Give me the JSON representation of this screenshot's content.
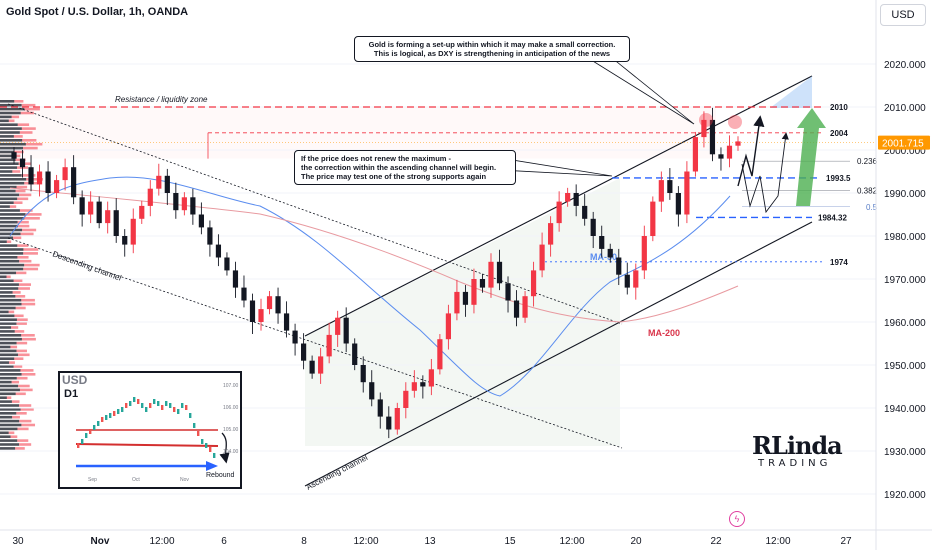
{
  "header": {
    "title": "Gold Spot / U.S. Dollar, 1h, OANDA",
    "currency": "USD"
  },
  "callouts": {
    "top": [
      "Gold is forming a set-up within which it may make a small correction.",
      "This is logical, as DXY is strengthening in anticipation of the news"
    ],
    "mid": [
      "If the price does not renew the maximum -",
      "the correction within the ascending channel will begin.",
      "The price may test one of the strong supports again"
    ]
  },
  "labels": {
    "resistance_zone": "Resistance / liquidity zone",
    "descending_channel": "Descending channel",
    "ascending_channel": "Ascending channel",
    "ma50": "MA-50",
    "ma200": "MA-200"
  },
  "inset": {
    "title": "USD",
    "period": "D1",
    "annotation": "Rebound",
    "y_ticks": [
      "107.00",
      "106.00",
      "105.00",
      "104.00"
    ],
    "x_ticks": [
      "Sep",
      "Oct",
      "Nov"
    ]
  },
  "brand": {
    "line1": "RLinda",
    "line2": "TRADING"
  },
  "colors": {
    "bull": "#f23645",
    "bear": "#131722",
    "level_red": "#f23645",
    "level_blue": "#2962ff",
    "channel": "#131722",
    "ma50": "#5b8def",
    "ma200": "#e89aa0",
    "projection": "#4caf50"
  },
  "chart_data": {
    "type": "candlestick",
    "title": "Gold Spot / U.S. Dollar, 1h, OANDA",
    "y_axis": {
      "ticks": [
        2020,
        2010,
        2000,
        1990,
        1980,
        1970,
        1960,
        1950,
        1940,
        1930,
        1920
      ],
      "range": [
        1916,
        2027
      ],
      "tick_labels": [
        "2020.000",
        "2010.000",
        "2000.000",
        "1990.000",
        "1980.000",
        "1970.000",
        "1960.000",
        "1950.000",
        "1940.000",
        "1930.000",
        "1920.000"
      ]
    },
    "x_axis": {
      "tick_labels": [
        "30",
        "Nov",
        "12:00",
        "6",
        "8",
        "12:00",
        "13",
        "15",
        "12:00",
        "20",
        "22",
        "12:00",
        "27"
      ]
    },
    "current_price": "2001.715",
    "levels": [
      {
        "price": 2010,
        "label": "2010",
        "style": "red-dashed"
      },
      {
        "price": 2004,
        "label": "2004",
        "style": "red-dashed"
      },
      {
        "price": 1997.4,
        "label": "0.236",
        "style": "gray"
      },
      {
        "price": 1993.5,
        "label": "1993.5",
        "style": "blue-dashed"
      },
      {
        "price": 1990.6,
        "label": "0.382",
        "style": "gray"
      },
      {
        "price": 1986.8,
        "label": "0.5",
        "style": "gray-blue"
      },
      {
        "price": 1984.32,
        "label": "1984.32",
        "style": "blue-dashed"
      },
      {
        "price": 1974,
        "label": "1974",
        "style": "blue-dotted"
      }
    ],
    "ohlc_path_close": [
      1998,
      1996,
      1992,
      1995,
      1990,
      1993,
      1996,
      1989,
      1985,
      1988,
      1983,
      1986,
      1980,
      1978,
      1984,
      1987,
      1991,
      1994,
      1990,
      1986,
      1989,
      1985,
      1982,
      1978,
      1975,
      1972,
      1968,
      1965,
      1960,
      1963,
      1966,
      1962,
      1958,
      1955,
      1951,
      1948,
      1952,
      1957,
      1961,
      1955,
      1950,
      1946,
      1942,
      1938,
      1935,
      1940,
      1944,
      1946,
      1945,
      1949,
      1956,
      1962,
      1967,
      1964,
      1970,
      1968,
      1974,
      1969,
      1965,
      1961,
      1966,
      1972,
      1978,
      1983,
      1988,
      1990,
      1987,
      1984,
      1980,
      1977,
      1975,
      1971,
      1968,
      1972,
      1980,
      1988,
      1993,
      1990,
      1985,
      1995,
      2003,
      2007,
      1999,
      1998,
      2001,
      2002
    ]
  }
}
